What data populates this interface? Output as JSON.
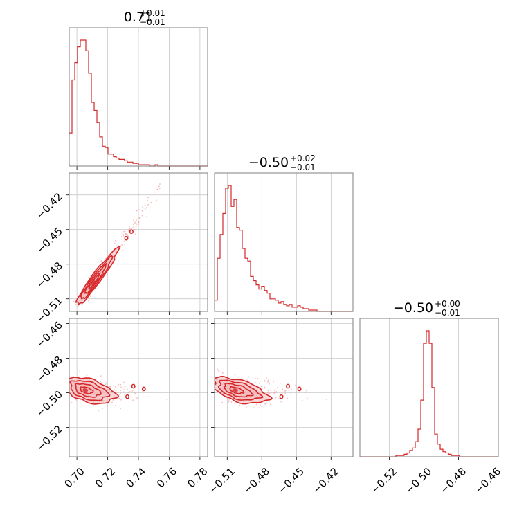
{
  "colors": {
    "main": "#d62728",
    "fill": "#f4b8bb",
    "scatter": "#f2a0a4",
    "grid": "#c8c8c8",
    "frame": "#7f7f7f"
  },
  "chart_data": {
    "type": "corner",
    "parameters": [
      {
        "title_value": "0.71",
        "title_plus": "+0.01",
        "title_minus": "−0.01",
        "range": [
          0.695,
          0.785
        ],
        "ticks": [
          0.7,
          0.72,
          0.74,
          0.76,
          0.78
        ],
        "tick_labels": [
          "0.70",
          "0.72",
          "0.74",
          "0.76",
          "0.78"
        ]
      },
      {
        "title_value": "−0.50",
        "title_plus": "+0.02",
        "title_minus": "−0.01",
        "range": [
          -0.521,
          -0.401
        ],
        "ticks": [
          -0.51,
          -0.48,
          -0.45,
          -0.42
        ],
        "tick_labels": [
          "−0.51",
          "−0.48",
          "−0.45",
          "−0.42"
        ]
      },
      {
        "title_value": "−0.50",
        "title_plus": "+0.00",
        "title_minus": "−0.01",
        "range": [
          -0.537,
          -0.457
        ],
        "ticks": [
          -0.52,
          -0.5,
          -0.48,
          -0.46
        ],
        "tick_labels": [
          "−0.52",
          "−0.50",
          "−0.48",
          "−0.46"
        ]
      }
    ],
    "histograms": [
      {
        "param": 0,
        "bin_start": 0.695,
        "bin_width": 0.0018,
        "counts": [
          25,
          65,
          78,
          90,
          95,
          95,
          87,
          70,
          48,
          42,
          33,
          22,
          15,
          14,
          9,
          9,
          7,
          6,
          5,
          5,
          4,
          3,
          3,
          2,
          2,
          1,
          1,
          1,
          1,
          0,
          0,
          1,
          0,
          0,
          0,
          0,
          0,
          0,
          0,
          0,
          0,
          0,
          0,
          0,
          0,
          0,
          0,
          0,
          0,
          0
        ]
      },
      {
        "param": 1,
        "bin_start": -0.521,
        "bin_width": 0.0024,
        "counts": [
          8,
          38,
          55,
          70,
          88,
          90,
          75,
          80,
          60,
          58,
          45,
          38,
          36,
          25,
          22,
          19,
          16,
          18,
          15,
          13,
          9,
          9,
          8,
          6,
          7,
          5,
          4,
          5,
          3,
          3,
          4,
          3,
          2,
          2,
          1,
          1,
          1,
          0,
          0,
          0,
          0,
          0,
          0,
          0,
          0,
          0,
          0,
          0,
          0,
          0
        ]
      },
      {
        "param": 2,
        "bin_start": -0.537,
        "bin_width": 0.0016,
        "counts": [
          0,
          0,
          0,
          0,
          0,
          0,
          0,
          0,
          0,
          0,
          0,
          0,
          0,
          1,
          1,
          1,
          2,
          3,
          5,
          7,
          12,
          22,
          45,
          90,
          100,
          90,
          55,
          18,
          10,
          6,
          4,
          3,
          2,
          1,
          1,
          1,
          0,
          0,
          0,
          0,
          0,
          0,
          0,
          0,
          0,
          0,
          0,
          0,
          0,
          0
        ]
      }
    ],
    "pairs": [
      {
        "x_param": 0,
        "y_param": 1,
        "center": [
          0.7105,
          -0.496
        ],
        "sigma": [
          0.0052,
          0.0095
        ],
        "correlation": 0.93,
        "tail": true
      },
      {
        "x_param": 0,
        "y_param": 2,
        "center": [
          0.7055,
          -0.4985
        ],
        "sigma": [
          0.0065,
          0.0038
        ],
        "correlation": -0.45,
        "tail": false
      },
      {
        "x_param": 1,
        "y_param": 2,
        "center": [
          -0.503,
          -0.4985
        ],
        "sigma": [
          0.0095,
          0.0038
        ],
        "correlation": -0.55,
        "tail": false
      }
    ],
    "contour_levels_sigma": [
      0.5,
      1.0,
      1.5,
      2.0
    ]
  }
}
